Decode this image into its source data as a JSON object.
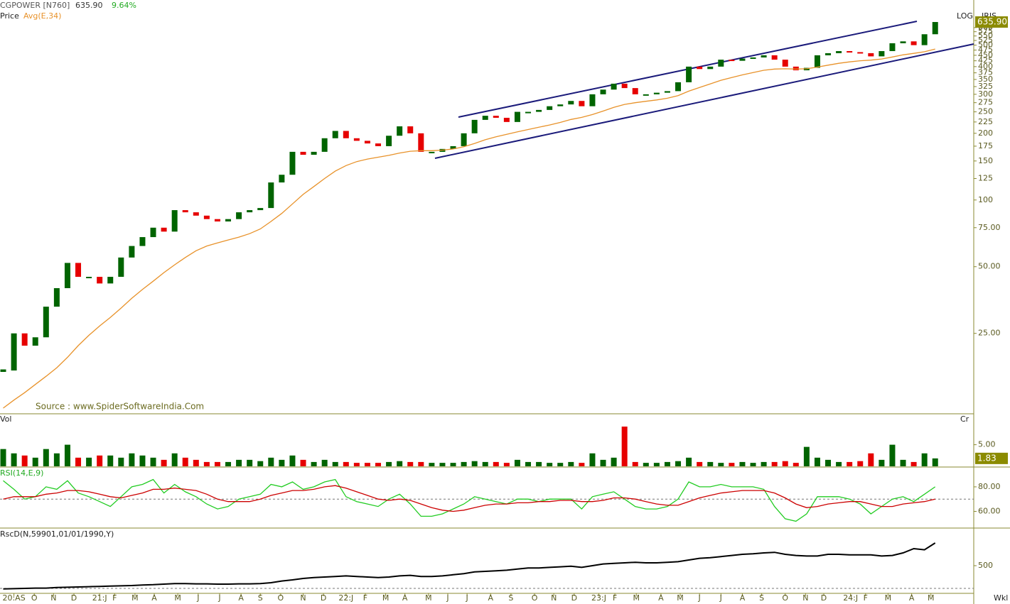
{
  "chart_data": [
    {
      "type": "candlestick",
      "title": "CGPOWER [N760]",
      "last_label": "635.90",
      "change_label": "9.64%",
      "scale_label": "LOG",
      "tool_label": "IRIS",
      "source": "Source : www.SpiderSoftwareIndia.Com",
      "log": true,
      "ylim": [
        11,
        700
      ],
      "yticks": [
        {
          "value": 25,
          "label": "25.00"
        },
        {
          "value": 50,
          "label": "50.00"
        },
        {
          "value": 75,
          "label": "75.00"
        },
        100,
        125,
        150,
        175,
        200,
        225,
        250,
        275,
        300,
        325,
        350,
        375,
        400,
        425,
        450,
        475,
        500,
        525,
        550,
        575,
        600
      ],
      "series": [
        {
          "name": "Price",
          "up_color": "#006400",
          "down_color": "#e60000",
          "values": [
            17,
            25,
            22,
            24,
            33,
            40,
            52,
            45,
            45,
            42,
            45,
            55,
            62,
            68,
            75,
            72,
            90,
            88,
            85,
            82,
            80,
            82,
            88,
            90,
            92,
            120,
            130,
            165,
            160,
            165,
            190,
            205,
            190,
            185,
            180,
            175,
            195,
            215,
            200,
            165,
            165,
            170,
            175,
            200,
            230,
            240,
            235,
            225,
            250,
            250,
            255,
            265,
            270,
            280,
            265,
            300,
            315,
            335,
            320,
            300,
            300,
            305,
            310,
            340,
            400,
            390,
            400,
            430,
            425,
            435,
            440,
            450,
            430,
            400,
            385,
            395,
            450,
            460,
            470,
            465,
            460,
            445,
            470,
            510,
            520,
            500,
            560,
            635.9
          ]
        },
        {
          "name": "Avg(E,34)",
          "color": "#e8922a",
          "values": [
            11.5,
            12.5,
            13.5,
            14.7,
            16,
            17.5,
            19.5,
            22,
            24.5,
            27,
            29.5,
            32.5,
            36,
            39.5,
            43,
            47,
            51,
            55,
            59,
            62,
            64,
            66,
            68,
            70.5,
            74,
            80,
            87,
            96,
            106,
            115,
            125,
            135,
            143,
            149,
            153,
            156,
            159,
            163,
            166,
            167,
            167,
            168,
            170,
            174,
            180,
            187,
            193,
            198,
            203,
            208,
            213,
            218,
            224,
            231,
            236,
            243,
            252,
            262,
            270,
            275,
            279,
            283,
            288,
            296,
            310,
            322,
            334,
            347,
            357,
            367,
            376,
            385,
            390,
            391,
            390,
            391,
            398,
            406,
            414,
            420,
            425,
            428,
            433,
            442,
            452,
            459,
            467,
            480
          ]
        }
      ]
    },
    {
      "type": "bar",
      "title": "Vol",
      "unit": "Cr",
      "last_label": "1.83",
      "ylim": [
        0,
        12
      ],
      "yticks": [
        {
          "value": 5,
          "label": "5.00"
        }
      ],
      "series": [
        {
          "up_color": "#006400",
          "down_color": "#e60000",
          "values": [
            4,
            3,
            2.5,
            2,
            4,
            3,
            5,
            2,
            2,
            2.5,
            2.5,
            2,
            3,
            2.5,
            2,
            1.5,
            3,
            2,
            1.5,
            1,
            1,
            1,
            1.5,
            1.5,
            1.2,
            2,
            1.5,
            2.5,
            1.5,
            1,
            1.5,
            1,
            1,
            0.8,
            0.8,
            0.8,
            1,
            1.2,
            1,
            1,
            0.8,
            0.8,
            0.8,
            1,
            1.2,
            1,
            1,
            0.8,
            1.5,
            1,
            1,
            0.8,
            0.8,
            1,
            0.8,
            3,
            1.5,
            2,
            9.2,
            1,
            0.8,
            0.8,
            1,
            1.2,
            2,
            1,
            1,
            0.8,
            0.8,
            1,
            0.8,
            1,
            1,
            1.2,
            0.8,
            4.5,
            2,
            1.5,
            1,
            1,
            1.2,
            3,
            1.5,
            5,
            1.5,
            1,
            3,
            1.83
          ]
        }
      ]
    },
    {
      "type": "line",
      "title": "RSI(14,E,9)",
      "ylim": [
        47,
        95
      ],
      "hline": 70,
      "yticks": [
        {
          "value": 80,
          "label": "80.00"
        },
        {
          "value": 60,
          "label": "60.00"
        }
      ],
      "series": [
        {
          "color": "#22cc22",
          "values": [
            85,
            78,
            70,
            72,
            80,
            78,
            85,
            75,
            72,
            68,
            64,
            72,
            80,
            82,
            86,
            75,
            82,
            76,
            72,
            66,
            62,
            64,
            70,
            72,
            74,
            82,
            80,
            84,
            78,
            80,
            84,
            86,
            72,
            68,
            66,
            64,
            70,
            74,
            66,
            56,
            56,
            58,
            62,
            66,
            72,
            70,
            68,
            66,
            70,
            70,
            68,
            70,
            70,
            70,
            62,
            72,
            74,
            76,
            70,
            64,
            62,
            62,
            64,
            70,
            84,
            80,
            80,
            82,
            80,
            80,
            80,
            78,
            64,
            54,
            52,
            58,
            72,
            72,
            72,
            70,
            66,
            58,
            64,
            70,
            72,
            68,
            74,
            80
          ]
        },
        {
          "color": "#cc0000",
          "values": [
            70,
            72,
            72,
            72,
            74,
            75,
            77,
            77,
            76,
            74,
            72,
            71,
            73,
            75,
            78,
            78,
            79,
            78,
            77,
            74,
            70,
            68,
            68,
            68,
            70,
            73,
            75,
            77,
            77,
            78,
            80,
            81,
            79,
            76,
            73,
            70,
            69,
            70,
            69,
            66,
            63,
            61,
            60,
            61,
            63,
            65,
            66,
            66,
            67,
            67,
            68,
            68,
            69,
            69,
            68,
            68,
            69,
            71,
            71,
            70,
            68,
            66,
            65,
            65,
            68,
            71,
            73,
            75,
            76,
            77,
            77,
            77,
            75,
            71,
            66,
            63,
            64,
            66,
            67,
            68,
            68,
            66,
            64,
            64,
            66,
            67,
            68,
            70
          ]
        }
      ]
    },
    {
      "type": "line",
      "title": "RscD(N,59901,01/01/1990,Y)",
      "ylim": [
        405,
        630
      ],
      "hline": 420,
      "yticks": [
        500
      ],
      "x_label": "Wkl",
      "xlim": [
        -0.3,
        90.6
      ],
      "xticks": [
        {
          "value": 1.0,
          "label": "20:AS"
        },
        {
          "value": 2.9,
          "label": "O"
        },
        {
          "value": 4.7,
          "label": "N"
        },
        {
          "value": 6.6,
          "label": "D"
        },
        {
          "value": 9.0,
          "label": "21:J"
        },
        {
          "value": 10.4,
          "label": "F"
        },
        {
          "value": 12.3,
          "label": "M"
        },
        {
          "value": 14.1,
          "label": "A"
        },
        {
          "value": 16.3,
          "label": "M"
        },
        {
          "value": 18.2,
          "label": "J"
        },
        {
          "value": 20.2,
          "label": "J"
        },
        {
          "value": 22.2,
          "label": "A"
        },
        {
          "value": 24.0,
          "label": "S"
        },
        {
          "value": 25.9,
          "label": "O"
        },
        {
          "value": 28.0,
          "label": "N"
        },
        {
          "value": 29.9,
          "label": "D"
        },
        {
          "value": 32.0,
          "label": "22:J"
        },
        {
          "value": 33.8,
          "label": "F"
        },
        {
          "value": 35.7,
          "label": "M"
        },
        {
          "value": 37.5,
          "label": "A"
        },
        {
          "value": 39.7,
          "label": "M"
        },
        {
          "value": 41.5,
          "label": "J"
        },
        {
          "value": 43.3,
          "label": "J"
        },
        {
          "value": 45.5,
          "label": "A"
        },
        {
          "value": 47.4,
          "label": "S"
        },
        {
          "value": 49.6,
          "label": "O"
        },
        {
          "value": 51.4,
          "label": "N"
        },
        {
          "value": 53.3,
          "label": "D"
        },
        {
          "value": 55.6,
          "label": "23:J"
        },
        {
          "value": 57.1,
          "label": "F"
        },
        {
          "value": 59.1,
          "label": "M"
        },
        {
          "value": 61.4,
          "label": "A"
        },
        {
          "value": 63.2,
          "label": "M"
        },
        {
          "value": 65.0,
          "label": "J"
        },
        {
          "value": 67.0,
          "label": "J"
        },
        {
          "value": 69.0,
          "label": "A"
        },
        {
          "value": 70.8,
          "label": "S"
        },
        {
          "value": 73.0,
          "label": "O"
        },
        {
          "value": 74.9,
          "label": "N"
        },
        {
          "value": 76.6,
          "label": "D"
        },
        {
          "value": 79.1,
          "label": "24:J"
        },
        {
          "value": 80.5,
          "label": "F"
        },
        {
          "value": 82.6,
          "label": "M"
        },
        {
          "value": 84.8,
          "label": "A"
        },
        {
          "value": 86.6,
          "label": "M"
        }
      ],
      "series": [
        {
          "color": "#000000",
          "values": [
            418,
            419,
            420,
            421,
            421,
            423,
            424,
            425,
            426,
            427,
            428,
            429,
            430,
            432,
            433,
            435,
            437,
            437,
            436,
            436,
            435,
            435,
            436,
            436,
            437,
            440,
            446,
            450,
            455,
            458,
            460,
            462,
            464,
            462,
            460,
            458,
            460,
            464,
            466,
            462,
            462,
            464,
            468,
            472,
            478,
            480,
            482,
            484,
            488,
            492,
            492,
            494,
            496,
            498,
            494,
            500,
            506,
            508,
            510,
            512,
            510,
            510,
            512,
            514,
            520,
            526,
            528,
            532,
            536,
            540,
            542,
            545,
            547,
            540,
            536,
            534,
            534,
            540,
            540,
            538,
            538,
            538,
            534,
            536,
            545,
            560,
            556,
            580
          ]
        }
      ]
    }
  ]
}
